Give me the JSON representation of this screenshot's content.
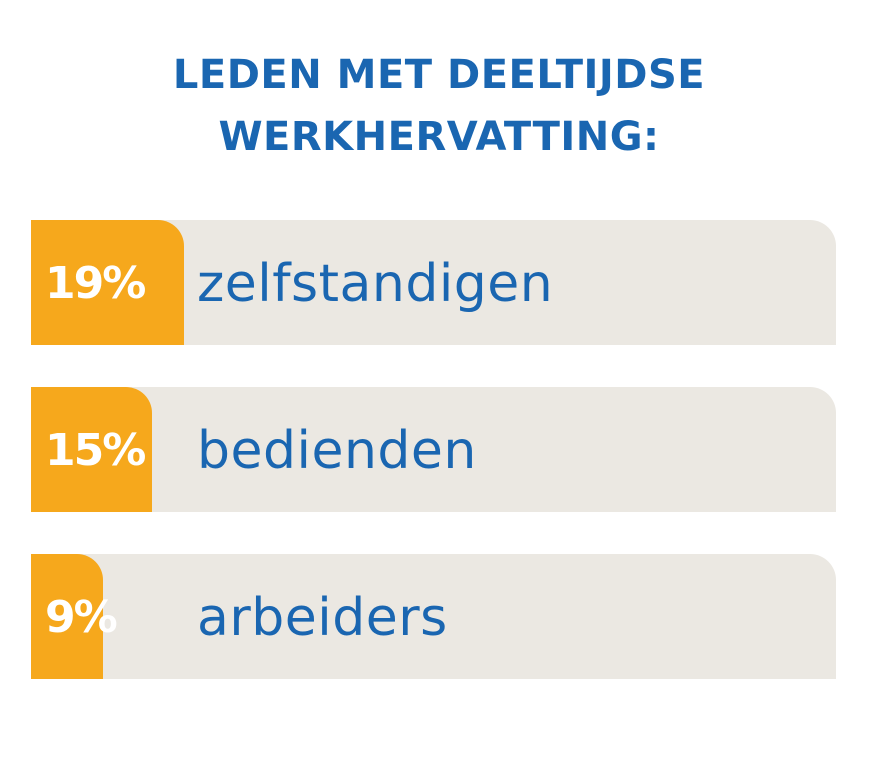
{
  "colors": {
    "title": "#1a66b1",
    "label": "#1a66b1",
    "bar_fill": "#f6a81c",
    "track": "#ebe8e2",
    "percent_text": "#ffffff"
  },
  "title": {
    "line1": "LEDEN MET DEELTIJDSE",
    "line2": "WERKHERVATTING:"
  },
  "chart_data": {
    "type": "bar",
    "title": "LEDEN MET DEELTIJDSE WERKHERVATTING:",
    "categories": [
      "zelfstandigen",
      "bedienden",
      "arbeiders"
    ],
    "values": [
      19,
      15,
      9
    ],
    "value_labels": [
      "19%",
      "15%",
      "9%"
    ],
    "unit": "%",
    "xlim": [
      0,
      100
    ],
    "orientation": "horizontal",
    "grid": false
  }
}
